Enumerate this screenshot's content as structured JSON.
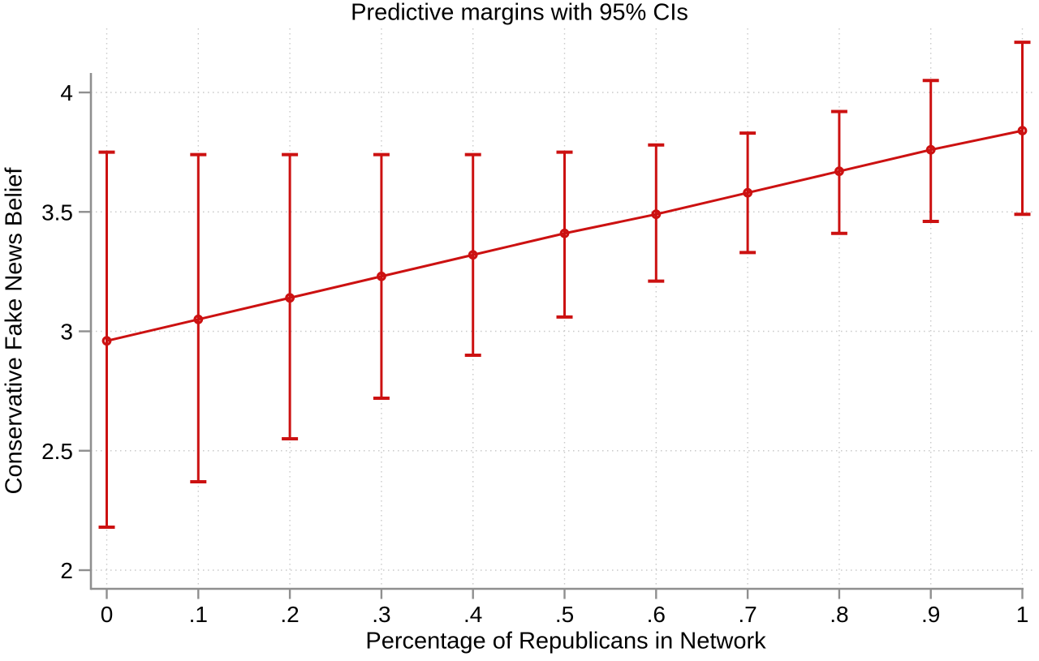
{
  "chart_data": {
    "type": "line",
    "title": "Predictive margins with 95% CIs",
    "xlabel": "Percentage of Republicans in Network",
    "ylabel": "Conservative Fake News Belief",
    "ci_level": "95%",
    "x": [
      0,
      0.1,
      0.2,
      0.3,
      0.4,
      0.5,
      0.6,
      0.7,
      0.8,
      0.9,
      1
    ],
    "x_tick_labels": [
      "0",
      ".1",
      ".2",
      ".3",
      ".4",
      ".5",
      ".6",
      ".7",
      ".8",
      ".9",
      "1"
    ],
    "y_ticks": [
      2,
      2.5,
      3,
      3.5,
      4
    ],
    "y_tick_labels": [
      "2",
      "2.5",
      "3",
      "3.5",
      "4"
    ],
    "ylim": [
      1.92,
      4.28
    ],
    "xlim": [
      0,
      1
    ],
    "grid": "dotted-both-axes",
    "legend": "none",
    "series": [
      {
        "name": "Predictive margin",
        "values": [
          2.96,
          3.05,
          3.14,
          3.23,
          3.32,
          3.41,
          3.49,
          3.58,
          3.67,
          3.76,
          3.84
        ],
        "ci_low": [
          2.18,
          2.37,
          2.55,
          2.72,
          2.9,
          3.06,
          3.21,
          3.33,
          3.41,
          3.46,
          3.49
        ],
        "ci_high": [
          3.75,
          3.74,
          3.74,
          3.74,
          3.74,
          3.75,
          3.78,
          3.83,
          3.92,
          4.05,
          4.21
        ]
      }
    ],
    "colors": {
      "line": "#cc1111",
      "marker": "#cc1111",
      "axis": "#8f8f8f",
      "grid": "#c9c9c9",
      "text": "#000000",
      "background": "#ffffff"
    }
  }
}
